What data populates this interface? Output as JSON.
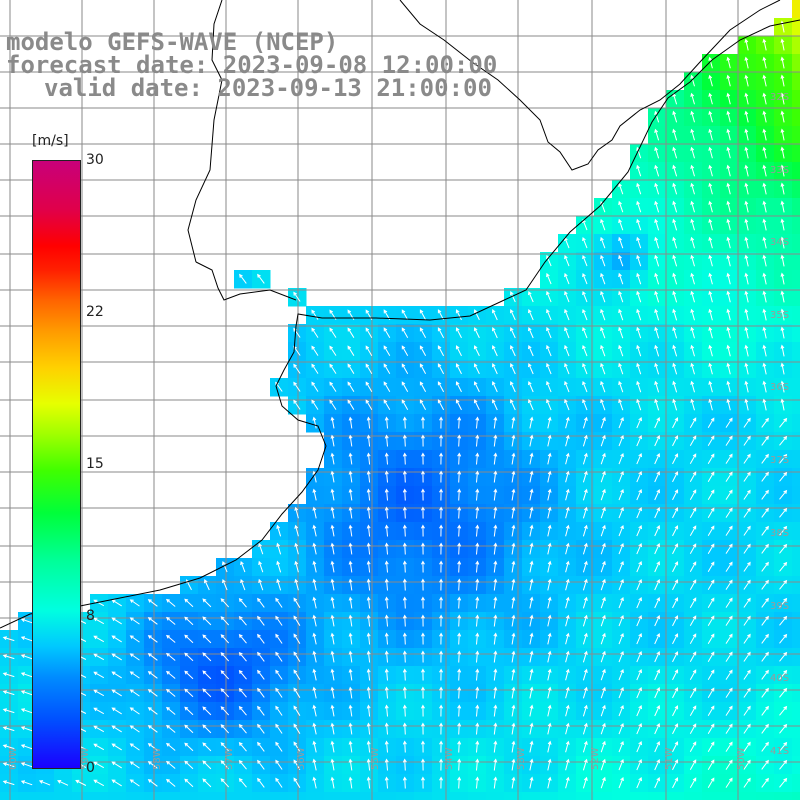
{
  "title": {
    "line1": "modelo GEFS-WAVE (NCEP)",
    "line2": "forecast date: 2023-09-08 12:00:00",
    "line3": "valid date: 2023-09-13 21:00:00"
  },
  "legend": {
    "unit": "[m/s]",
    "ticks": [
      {
        "value": 30,
        "label": "30"
      },
      {
        "value": 22,
        "label": "22"
      },
      {
        "value": 15,
        "label": "15"
      },
      {
        "value": 8,
        "label": "8"
      },
      {
        "value": 0,
        "label": "0"
      }
    ]
  },
  "lat_labels": [
    "32S",
    "33S",
    "34S",
    "35S",
    "36S",
    "37S",
    "38S",
    "39S",
    "40S",
    "41S"
  ],
  "lon_labels": [
    "60W",
    "59W",
    "58W",
    "57W",
    "56W",
    "55W",
    "54W",
    "53W",
    "52W",
    "51W",
    "50W"
  ],
  "colors": {
    "background": "#ffffff",
    "grid": "#8a8a8a",
    "coast": "#000000",
    "title": "#8a8a8a",
    "arrows": "#ffffff"
  }
}
